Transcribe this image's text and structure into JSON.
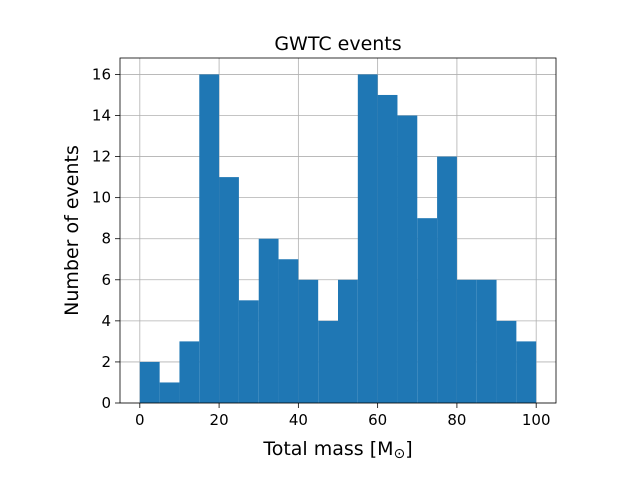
{
  "chart_data": {
    "type": "bar",
    "title": "GWTC events",
    "xlabel": "Total mass [M",
    "xlabel_symbol": "⊙",
    "xlabel_end": "]",
    "ylabel": "Number of events",
    "bin_width": 5,
    "bin_edges_start": [
      0,
      5,
      10,
      15,
      20,
      25,
      30,
      35,
      40,
      45,
      50,
      55,
      60,
      65,
      70,
      75,
      80,
      85,
      90,
      95
    ],
    "values": [
      2,
      1,
      3,
      16,
      11,
      5,
      8,
      7,
      6,
      4,
      6,
      16,
      15,
      14,
      9,
      12,
      6,
      6,
      4,
      3
    ],
    "xlim": [
      -5,
      105
    ],
    "ylim": [
      0,
      16.8
    ],
    "xticks": [
      0,
      20,
      40,
      60,
      80,
      100
    ],
    "yticks": [
      0,
      2,
      4,
      6,
      8,
      10,
      12,
      14,
      16
    ],
    "grid": true,
    "bar_color": "#1f77b4",
    "grid_color": "#b0b0b0"
  }
}
